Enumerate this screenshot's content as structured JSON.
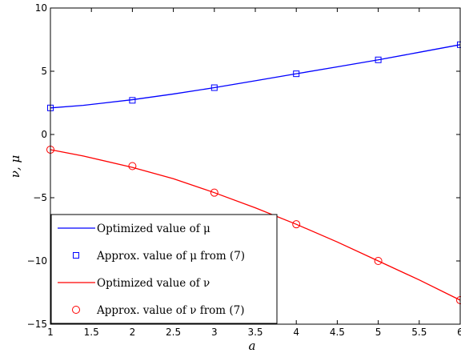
{
  "chart_data": {
    "type": "line",
    "title": "",
    "xlabel": "a",
    "ylabel": "ν, μ",
    "xlim": [
      1,
      6
    ],
    "ylim": [
      -15,
      10
    ],
    "x_ticks": [
      1,
      1.5,
      2,
      2.5,
      3,
      3.5,
      4,
      4.5,
      5,
      5.5,
      6
    ],
    "x_tick_labels": [
      "1",
      "1.5",
      "2",
      "2.5",
      "3",
      "3.5",
      "4",
      "4.5",
      "5",
      "5.5",
      "6"
    ],
    "y_ticks": [
      -15,
      -10,
      -5,
      0,
      5,
      10
    ],
    "y_tick_labels": [
      "−15",
      "−10",
      "−5",
      "0",
      "5",
      "10"
    ],
    "grid": false,
    "legend_position": "bottom-left",
    "series": [
      {
        "name": "Optimized value of μ",
        "style": "line",
        "color": "#0000ff",
        "x": [
          1,
          1.4,
          2,
          2.5,
          3,
          3.5,
          4,
          4.5,
          5,
          5.5,
          6
        ],
        "y": [
          2.1,
          2.3,
          2.75,
          3.2,
          3.7,
          4.25,
          4.8,
          5.35,
          5.9,
          6.5,
          7.1
        ]
      },
      {
        "name": "Approx. value of μ from (7)",
        "style": "square",
        "color": "#0000ff",
        "x": [
          1,
          2,
          3,
          4,
          5,
          6
        ],
        "y": [
          2.1,
          2.7,
          3.7,
          4.8,
          5.9,
          7.1
        ]
      },
      {
        "name": "Optimized value of ν",
        "style": "line",
        "color": "#ff0000",
        "x": [
          1,
          1.4,
          2,
          2.5,
          3,
          3.5,
          4,
          4.5,
          5,
          5.5,
          6
        ],
        "y": [
          -1.2,
          -1.7,
          -2.6,
          -3.5,
          -4.6,
          -5.8,
          -7.1,
          -8.5,
          -10.0,
          -11.5,
          -13.1
        ]
      },
      {
        "name": "Approx. value of ν from (7)",
        "style": "circle",
        "color": "#ff0000",
        "x": [
          1,
          2,
          3,
          4,
          5,
          6
        ],
        "y": [
          -1.2,
          -2.5,
          -4.6,
          -7.1,
          -10.0,
          -13.1
        ]
      }
    ]
  }
}
